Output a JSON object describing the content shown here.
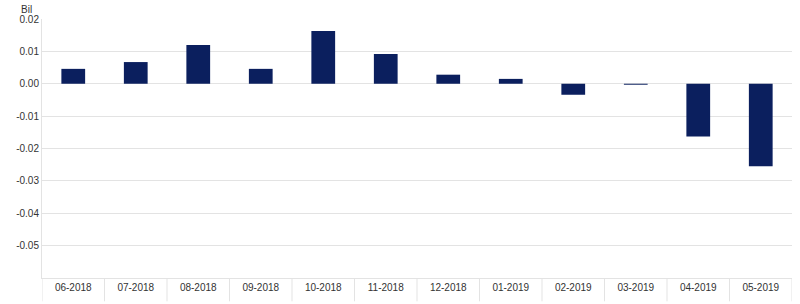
{
  "chart_data": {
    "type": "bar",
    "ylabel": "Bil",
    "categories": [
      "06-2018",
      "07-2018",
      "08-2018",
      "09-2018",
      "10-2018",
      "11-2018",
      "12-2018",
      "01-2019",
      "02-2019",
      "03-2019",
      "04-2019",
      "05-2019"
    ],
    "values": [
      0.0046,
      0.0067,
      0.012,
      0.0046,
      0.0163,
      0.0092,
      0.0028,
      0.0015,
      -0.0034,
      -0.0003,
      -0.0163,
      -0.0255
    ],
    "color": "#0b1f5e",
    "ylim": [
      -0.06,
      0.02
    ],
    "yticks": [
      0.02,
      0.01,
      {
        "value": 0,
        "label": "0.00"
      },
      -0.01,
      -0.02,
      -0.03,
      -0.04,
      -0.05
    ],
    "grid": true
  }
}
